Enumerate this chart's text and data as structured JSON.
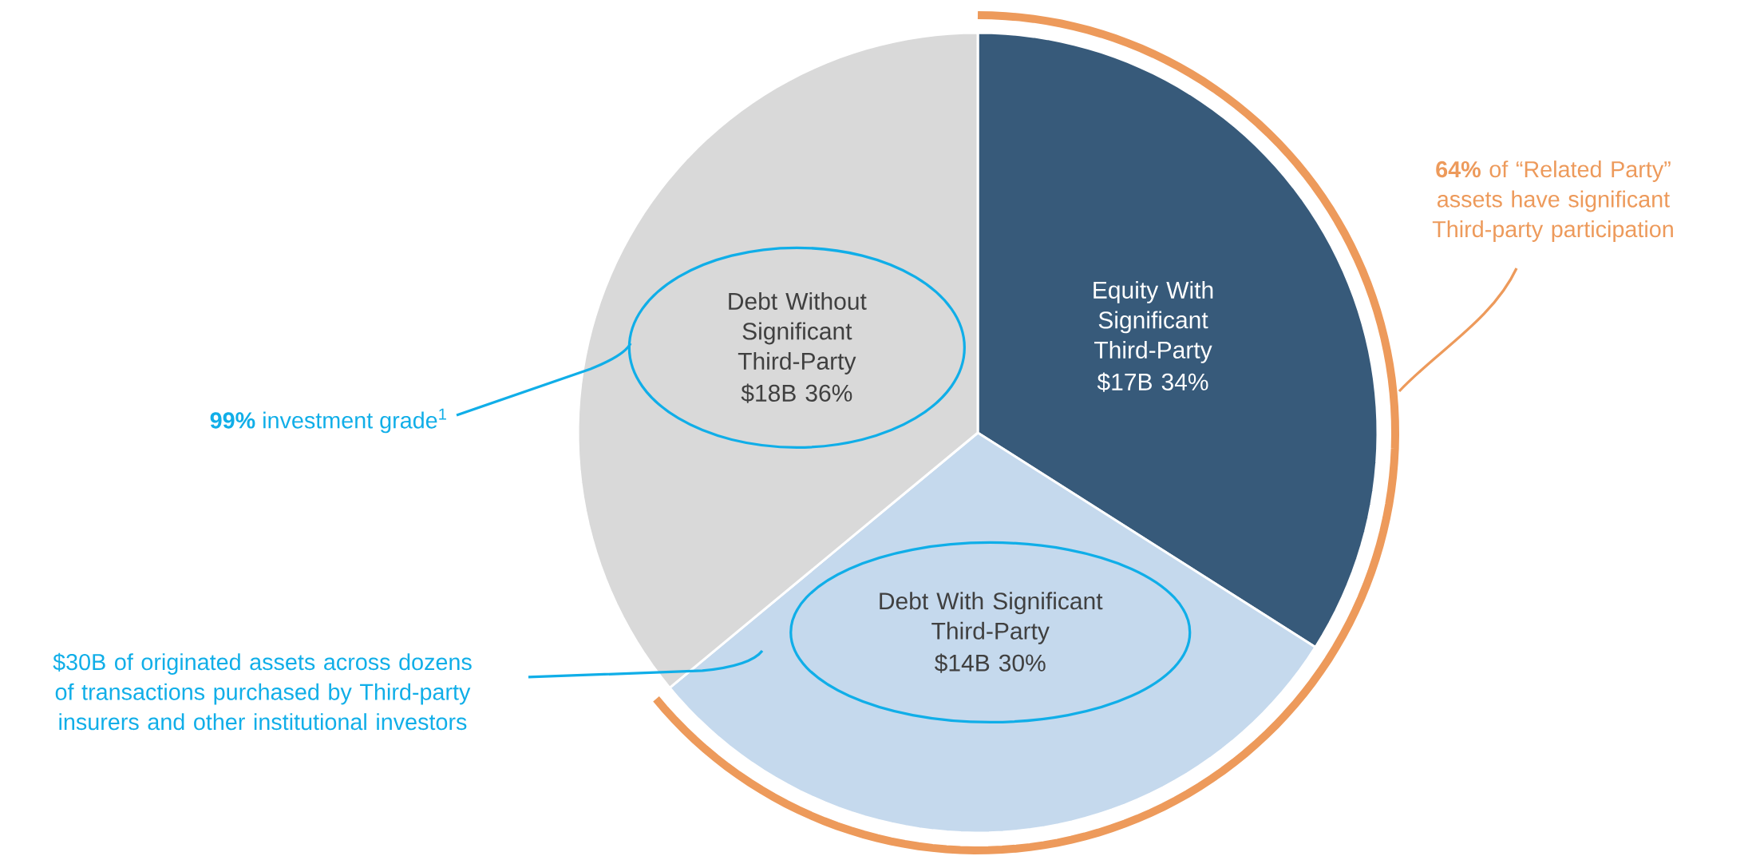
{
  "chart_data": {
    "type": "pie",
    "categories": [
      "Equity With Significant Third-Party",
      "Debt With Significant Third-Party",
      "Debt Without Significant Third-Party"
    ],
    "values": [
      34,
      30,
      36
    ],
    "colors": [
      "#375a7a",
      "#c5d9ed",
      "#d9d9d9"
    ],
    "value_labels": [
      "$17B 34%",
      "$14B 30%",
      "$18B 36%"
    ],
    "annotations": [
      "**64%** of “Related Party” assets have significant Third-party participation",
      "**99%** investment grade$^{1}$",
      "$30B of originated assets across dozens of transactions purchased by Third-party insurers and other institutional investors"
    ]
  }
}
